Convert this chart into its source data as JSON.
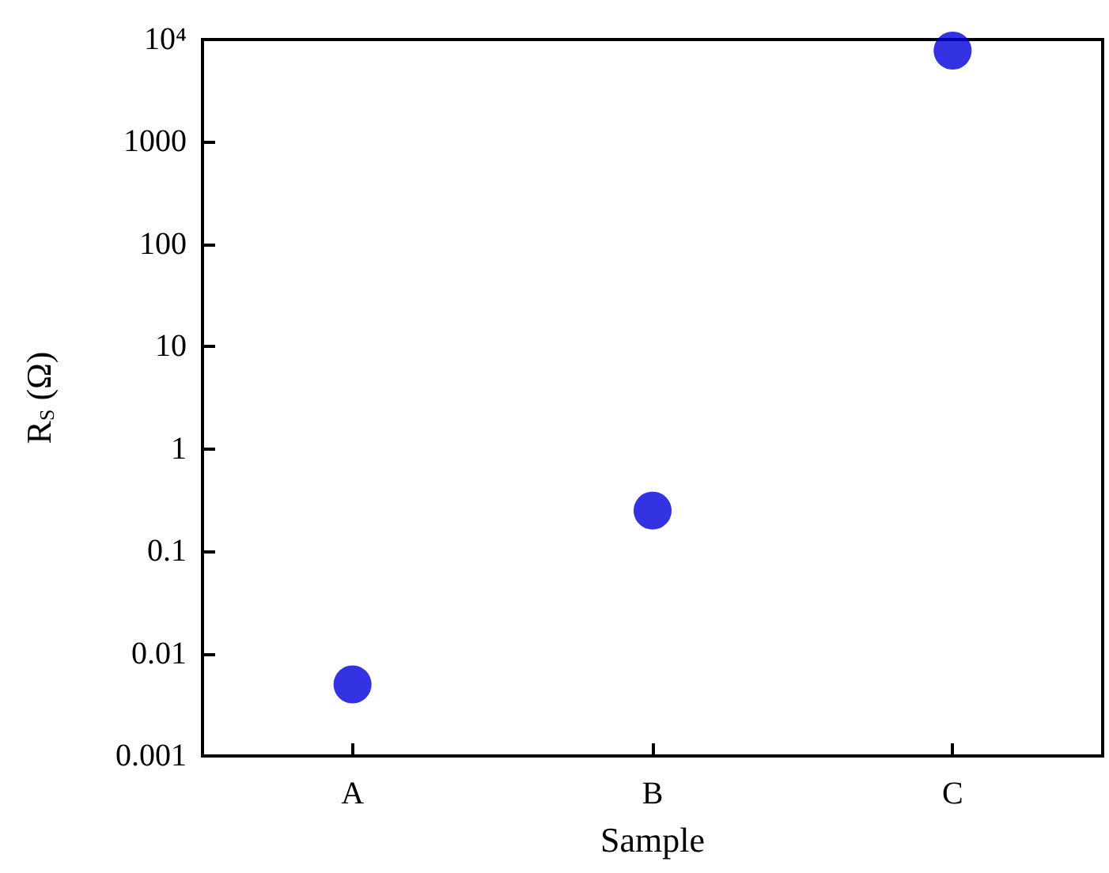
{
  "chart_data": {
    "type": "scatter",
    "xlabel": "Sample",
    "ylabel": "R$_{S}$ (Ω)",
    "categories": [
      "A",
      "B",
      "C"
    ],
    "series": [
      {
        "color": "#0000dd",
        "values": [
          0.005,
          0.25,
          7800
        ]
      }
    ],
    "log": "y",
    "ylim": [
      0.001,
      10000
    ],
    "yticks": [
      0.001,
      0.01,
      0.1,
      1,
      10,
      100,
      1000,
      {
        "value": 10000,
        "label": "10⁴"
      }
    ],
    "marker": "circle",
    "grid": false
  }
}
